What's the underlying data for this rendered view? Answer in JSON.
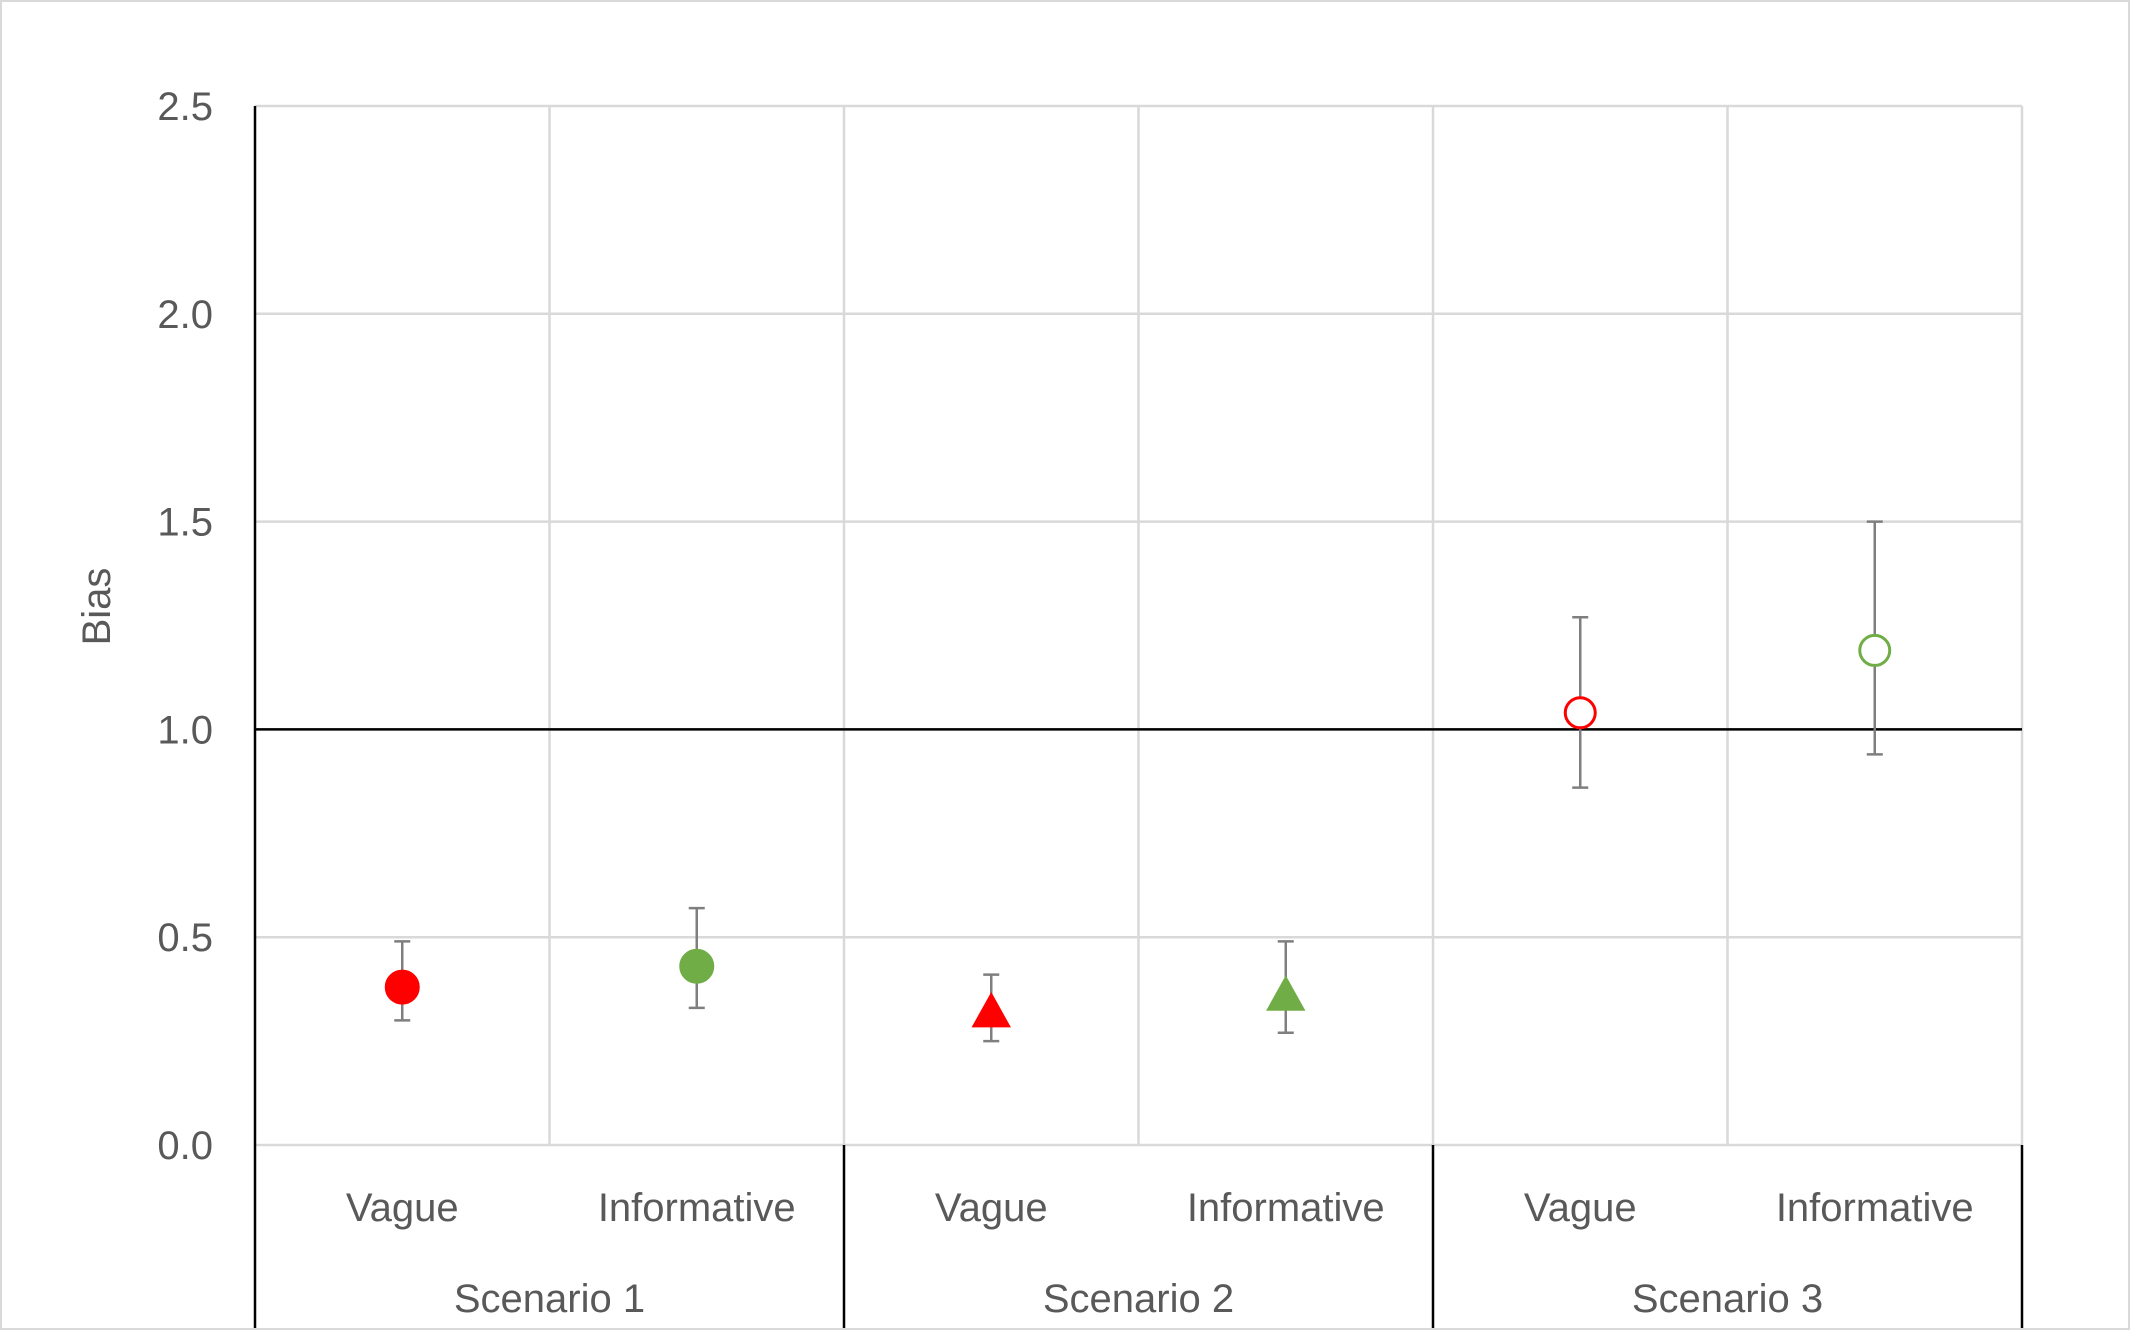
{
  "chart_data": {
    "type": "scatter",
    "ylabel": "Bias",
    "ylim": [
      0,
      2.5
    ],
    "yticks": [
      "0.0",
      "0.5",
      "1.0",
      "1.5",
      "2.0",
      "2.5"
    ],
    "ytick_values": [
      0,
      0.5,
      1.0,
      1.5,
      2.0,
      2.5
    ],
    "reference_line": 1.0,
    "grid": true,
    "groups": [
      {
        "label": "Scenario 1",
        "categories": [
          "Vague",
          "Informative"
        ]
      },
      {
        "label": "Scenario 2",
        "categories": [
          "Vague",
          "Informative"
        ]
      },
      {
        "label": "Scenario 3",
        "categories": [
          "Vague",
          "Informative"
        ]
      }
    ],
    "points": [
      {
        "group": "Scenario 1",
        "category": "Vague",
        "value": 0.38,
        "lower": 0.3,
        "upper": 0.49,
        "marker": "circle",
        "fill": "filled",
        "color": "#ff0000"
      },
      {
        "group": "Scenario 1",
        "category": "Informative",
        "value": 0.43,
        "lower": 0.33,
        "upper": 0.57,
        "marker": "circle",
        "fill": "filled",
        "color": "#70ad47"
      },
      {
        "group": "Scenario 2",
        "category": "Vague",
        "value": 0.32,
        "lower": 0.25,
        "upper": 0.41,
        "marker": "triangle",
        "fill": "filled",
        "color": "#ff0000"
      },
      {
        "group": "Scenario 2",
        "category": "Informative",
        "value": 0.36,
        "lower": 0.27,
        "upper": 0.49,
        "marker": "triangle",
        "fill": "filled",
        "color": "#70ad47"
      },
      {
        "group": "Scenario 3",
        "category": "Vague",
        "value": 1.04,
        "lower": 0.86,
        "upper": 1.27,
        "marker": "circle",
        "fill": "hollow",
        "color": "#ff0000"
      },
      {
        "group": "Scenario 3",
        "category": "Informative",
        "value": 1.19,
        "lower": 0.94,
        "upper": 1.5,
        "marker": "circle",
        "fill": "hollow",
        "color": "#70ad47"
      }
    ],
    "colors": {
      "error_bar": "#7f7f7f",
      "grid": "#d9d9d9",
      "axis": "#000000",
      "text": "#595959"
    }
  }
}
